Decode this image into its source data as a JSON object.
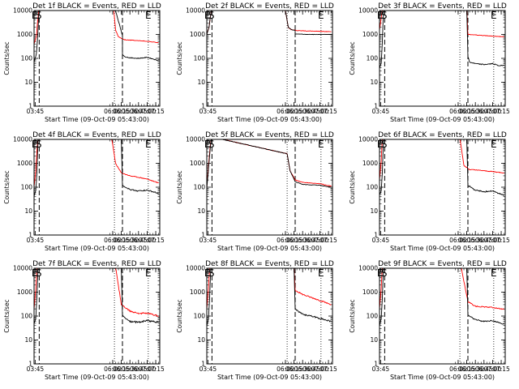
{
  "chart_data": [
    {
      "type": "line",
      "title": "Det 1f BLACK = Events, RED = LLD",
      "xlabel": "Start Time (09-Oct-09 05:43:00)",
      "ylabel": "Counts/sec",
      "yscale": "log",
      "xlim": [
        "03:43",
        "07:22"
      ],
      "ylim": [
        1,
        10000
      ],
      "xticks": [
        "03:45",
        "06:00",
        "06:15",
        "06:30",
        "06:45",
        "07:00",
        "07:15"
      ],
      "yticks": [
        "1",
        "10",
        "100",
        "1000",
        "10000"
      ],
      "markers": [
        {
          "label": "E",
          "x": "03:44"
        },
        {
          "label": "S",
          "x": "03:51"
        },
        {
          "label": "E",
          "x": "07:02"
        }
      ],
      "dashed_lines": [
        "03:52",
        "06:17"
      ],
      "dotted_lines": [
        "06:03",
        "07:02"
      ],
      "series": [
        {
          "color": "#ff0000",
          "x": [
            "03:43",
            "03:47",
            "03:49",
            "03:51",
            "03:53",
            "06:02",
            "06:05",
            "06:10",
            "06:20",
            "06:40",
            "07:00",
            "07:20"
          ],
          "values": [
            400,
            800,
            3000,
            10000,
            12000,
            10000,
            1500,
            800,
            600,
            560,
            520,
            450
          ],
          "noise": 0.02
        },
        {
          "color": "#000000",
          "x": [
            "03:43",
            "03:47",
            "03:49",
            "03:51",
            "03:53",
            "06:05",
            "06:17",
            "06:17",
            "06:20",
            "06:30",
            "06:45",
            "07:00",
            "07:10",
            "07:20"
          ],
          "values": [
            70,
            150,
            600,
            6000,
            12000,
            10000,
            900,
            150,
            120,
            105,
            100,
            110,
            95,
            80
          ],
          "noise": 0.03
        }
      ]
    },
    {
      "type": "line",
      "title": "Det 2f BLACK = Events, RED = LLD",
      "xlabel": "Start Time (09-Oct-09 05:43:00)",
      "ylabel": "Counts/sec",
      "yscale": "log",
      "xlim": [
        "03:43",
        "07:22"
      ],
      "ylim": [
        1,
        10000
      ],
      "xticks": [
        "03:45",
        "06:00",
        "06:15",
        "06:30",
        "06:45",
        "07:00",
        "07:15"
      ],
      "yticks": [
        "1",
        "10",
        "100",
        "1000",
        "10000"
      ],
      "markers": [
        {
          "label": "E",
          "x": "03:44"
        },
        {
          "label": "S",
          "x": "03:51"
        },
        {
          "label": "E",
          "x": "07:02"
        }
      ],
      "dashed_lines": [
        "03:52",
        "06:17"
      ],
      "dotted_lines": [
        "06:03",
        "07:02"
      ],
      "series": [
        {
          "color": "#ff0000",
          "x": [
            "03:43",
            "03:47",
            "03:49",
            "03:51",
            "03:53",
            "06:00",
            "06:05",
            "06:10",
            "06:20",
            "06:40",
            "07:00",
            "07:20"
          ],
          "values": [
            1000,
            2000,
            5000,
            10000,
            12000,
            10000,
            2000,
            1600,
            1450,
            1400,
            1350,
            1300
          ],
          "noise": 0.02
        },
        {
          "color": "#000000",
          "x": [
            "03:43",
            "03:47",
            "03:49",
            "03:51",
            "03:53",
            "06:00",
            "06:05",
            "06:10",
            "06:17",
            "06:17",
            "06:40",
            "07:00",
            "07:20"
          ],
          "values": [
            1000,
            2000,
            5000,
            10000,
            12000,
            10000,
            2000,
            1600,
            1450,
            1050,
            1000,
            1000,
            1000
          ],
          "noise": 0.015
        }
      ]
    },
    {
      "type": "line",
      "title": "Det 3f BLACK = Events, RED = LLD",
      "xlabel": "Start Time (09-Oct-09 05:43:00)",
      "ylabel": "Counts/sec",
      "yscale": "log",
      "xlim": [
        "03:43",
        "07:22"
      ],
      "ylim": [
        1,
        10000
      ],
      "xticks": [
        "03:45",
        "06:00",
        "06:15",
        "06:30",
        "06:45",
        "07:00",
        "07:15"
      ],
      "yticks": [
        "1",
        "10",
        "100",
        "1000",
        "10000"
      ],
      "markers": [
        {
          "label": "E",
          "x": "03:44"
        },
        {
          "label": "S",
          "x": "03:51"
        },
        {
          "label": "E",
          "x": "07:02"
        }
      ],
      "dashed_lines": [
        "03:52",
        "06:17"
      ],
      "dotted_lines": [
        "06:03",
        "07:02"
      ],
      "series": [
        {
          "color": "#ff0000",
          "x": [
            "03:43",
            "03:46",
            "03:48",
            "03:50",
            "06:15",
            "06:17",
            "06:30",
            "06:45",
            "07:00",
            "07:20"
          ],
          "values": [
            1500,
            5000,
            12000,
            12000,
            12000,
            1000,
            950,
            900,
            850,
            800
          ],
          "noise": 0.02
        },
        {
          "color": "#000000",
          "x": [
            "03:43",
            "03:46",
            "03:48",
            "03:50",
            "06:15",
            "06:17",
            "06:20",
            "06:30",
            "06:45",
            "07:00",
            "07:10",
            "07:20"
          ],
          "values": [
            40,
            60,
            500,
            12000,
            12000,
            120,
            70,
            60,
            55,
            60,
            50,
            50
          ],
          "noise": 0.04
        }
      ]
    },
    {
      "type": "line",
      "title": "Det 4f BLACK = Events, RED = LLD",
      "xlabel": "Start Time (09-Oct-09 05:43:00)",
      "ylabel": "Counts/sec",
      "yscale": "log",
      "xlim": [
        "03:43",
        "07:22"
      ],
      "ylim": [
        1,
        10000
      ],
      "xticks": [
        "03:45",
        "06:00",
        "06:15",
        "06:30",
        "06:45",
        "07:00",
        "07:15"
      ],
      "yticks": [
        "1",
        "10",
        "100",
        "1000",
        "10000"
      ],
      "markers": [
        {
          "label": "E",
          "x": "03:44"
        },
        {
          "label": "S",
          "x": "03:51"
        },
        {
          "label": "E",
          "x": "07:02"
        }
      ],
      "dashed_lines": [
        "03:52",
        "06:17"
      ],
      "dotted_lines": [
        "06:03",
        "07:02"
      ],
      "series": [
        {
          "color": "#ff0000",
          "x": [
            "03:43",
            "03:46",
            "03:48",
            "03:50",
            "05:58",
            "06:05",
            "06:15",
            "06:30",
            "06:45",
            "07:00",
            "07:20"
          ],
          "values": [
            100,
            500,
            3000,
            12000,
            12000,
            1000,
            400,
            300,
            260,
            220,
            150
          ],
          "noise": 0.03
        },
        {
          "color": "#000000",
          "x": [
            "03:43",
            "03:46",
            "03:48",
            "03:50",
            "06:15",
            "06:17",
            "06:30",
            "06:45",
            "07:00",
            "07:20"
          ],
          "values": [
            40,
            70,
            400,
            12000,
            12000,
            120,
            80,
            70,
            75,
            55
          ],
          "noise": 0.05
        }
      ]
    },
    {
      "type": "line",
      "title": "Det 5f BLACK = Events, RED = LLD",
      "xlabel": "Start Time (09-Oct-09 05:43:00)",
      "ylabel": "Counts/sec",
      "yscale": "log",
      "xlim": [
        "03:43",
        "07:22"
      ],
      "ylim": [
        1,
        10000
      ],
      "xticks": [
        "03:45",
        "06:00",
        "06:15",
        "06:30",
        "06:45",
        "07:00",
        "07:15"
      ],
      "yticks": [
        "1",
        "10",
        "100",
        "1000",
        "10000"
      ],
      "markers": [
        {
          "label": "E",
          "x": "03:44"
        },
        {
          "label": "S",
          "x": "03:51"
        },
        {
          "label": "E",
          "x": "07:02"
        }
      ],
      "dashed_lines": [
        "03:52",
        "06:17"
      ],
      "dotted_lines": [
        "06:03",
        "07:02"
      ],
      "series": [
        {
          "color": "#ff0000",
          "x": [
            "03:43",
            "03:46",
            "03:49",
            "03:51",
            "03:56",
            "06:03",
            "06:08",
            "06:17",
            "06:30",
            "06:45",
            "07:00",
            "07:20"
          ],
          "values": [
            100,
            800,
            5000,
            12000,
            12000,
            2500,
            500,
            200,
            160,
            150,
            140,
            110
          ],
          "noise": 0.02
        },
        {
          "color": "#000000",
          "x": [
            "03:43",
            "03:46",
            "03:49",
            "03:51",
            "03:56",
            "06:03",
            "06:08",
            "06:17",
            "06:30",
            "06:45",
            "07:00",
            "07:20"
          ],
          "values": [
            90,
            600,
            4000,
            12000,
            12000,
            2500,
            500,
            170,
            130,
            125,
            120,
            100
          ],
          "noise": 0.02
        }
      ]
    },
    {
      "type": "line",
      "title": "Det 6f BLACK = Events, RED = LLD",
      "xlabel": "Start Time (09-Oct-09 05:43:00)",
      "ylabel": "Counts/sec",
      "yscale": "log",
      "xlim": [
        "03:43",
        "07:22"
      ],
      "ylim": [
        1,
        10000
      ],
      "xticks": [
        "03:45",
        "06:00",
        "06:15",
        "06:30",
        "06:45",
        "07:00",
        "07:15"
      ],
      "yticks": [
        "1",
        "10",
        "100",
        "1000",
        "10000"
      ],
      "markers": [
        {
          "label": "E",
          "x": "03:44"
        },
        {
          "label": "S",
          "x": "03:51"
        },
        {
          "label": "E",
          "x": "07:02"
        }
      ],
      "dashed_lines": [
        "03:52",
        "06:17"
      ],
      "dotted_lines": [
        "06:03",
        "07:02"
      ],
      "series": [
        {
          "color": "#ff0000",
          "x": [
            "03:43",
            "03:46",
            "03:48",
            "03:50",
            "06:03",
            "06:10",
            "06:20",
            "06:40",
            "07:00",
            "07:20"
          ],
          "values": [
            200,
            1200,
            12000,
            12000,
            12000,
            800,
            550,
            500,
            450,
            400
          ],
          "noise": 0.03
        },
        {
          "color": "#000000",
          "x": [
            "03:43",
            "03:46",
            "03:48",
            "03:50",
            "06:15",
            "06:17",
            "06:30",
            "06:45",
            "07:00",
            "07:20"
          ],
          "values": [
            50,
            70,
            400,
            12000,
            12000,
            120,
            75,
            65,
            70,
            45
          ],
          "noise": 0.05
        }
      ]
    },
    {
      "type": "line",
      "title": "Det 7f BLACK = Events, RED = LLD",
      "xlabel": "Start Time (09-Oct-09 05:43:00)",
      "ylabel": "Counts/sec",
      "yscale": "log",
      "xlim": [
        "03:43",
        "07:22"
      ],
      "ylim": [
        1,
        10000
      ],
      "xticks": [
        "03:45",
        "06:00",
        "06:15",
        "06:30",
        "06:45",
        "07:00",
        "07:15"
      ],
      "yticks": [
        "1",
        "10",
        "100",
        "1000",
        "10000"
      ],
      "markers": [
        {
          "label": "E",
          "x": "03:44"
        },
        {
          "label": "S",
          "x": "03:51"
        },
        {
          "label": "E",
          "x": "07:02"
        }
      ],
      "dashed_lines": [
        "03:52",
        "06:17"
      ],
      "dotted_lines": [
        "06:03",
        "07:02"
      ],
      "series": [
        {
          "color": "#ff0000",
          "x": [
            "03:43",
            "03:46",
            "03:48",
            "03:50",
            "06:05",
            "06:15",
            "06:30",
            "06:45",
            "07:00",
            "07:20"
          ],
          "values": [
            200,
            1200,
            12000,
            12000,
            12000,
            300,
            160,
            130,
            130,
            100
          ],
          "noise": 0.06
        },
        {
          "color": "#000000",
          "x": [
            "03:43",
            "03:46",
            "03:48",
            "03:50",
            "06:15",
            "06:17",
            "06:30",
            "06:45",
            "07:00",
            "07:20"
          ],
          "values": [
            50,
            80,
            600,
            12000,
            12000,
            100,
            60,
            55,
            65,
            55
          ],
          "noise": 0.07
        }
      ]
    },
    {
      "type": "line",
      "title": "Det 8f BLACK = Events, RED = LLD",
      "xlabel": "Start Time (09-Oct-09 05:43:00)",
      "ylabel": "Counts/sec",
      "yscale": "log",
      "xlim": [
        "03:43",
        "07:22"
      ],
      "ylim": [
        1,
        10000
      ],
      "xticks": [
        "03:45",
        "06:00",
        "06:15",
        "06:30",
        "06:45",
        "07:00",
        "07:15"
      ],
      "yticks": [
        "1",
        "10",
        "100",
        "1000",
        "10000"
      ],
      "markers": [
        {
          "label": "E",
          "x": "03:44"
        },
        {
          "label": "S",
          "x": "03:51"
        },
        {
          "label": "E",
          "x": "07:02"
        }
      ],
      "dashed_lines": [
        "03:52",
        "06:17"
      ],
      "dotted_lines": [
        "06:03",
        "07:02"
      ],
      "series": [
        {
          "color": "#ff0000",
          "x": [
            "03:43",
            "03:46",
            "03:48",
            "03:50",
            "06:15",
            "06:17",
            "06:30",
            "06:45",
            "07:00",
            "07:20"
          ],
          "values": [
            200,
            1500,
            12000,
            12000,
            12000,
            1200,
            800,
            600,
            450,
            300
          ],
          "noise": 0.05
        },
        {
          "color": "#000000",
          "x": [
            "03:43",
            "03:46",
            "03:48",
            "03:50",
            "06:15",
            "06:17",
            "06:30",
            "06:45",
            "07:00",
            "07:20"
          ],
          "values": [
            40,
            80,
            600,
            12000,
            12000,
            200,
            120,
            100,
            80,
            60
          ],
          "noise": 0.06
        }
      ]
    },
    {
      "type": "line",
      "title": "Det 9f BLACK = Events, RED = LLD",
      "xlabel": "Start Time (09-Oct-09 05:43:00)",
      "ylabel": "Counts/sec",
      "yscale": "log",
      "xlim": [
        "03:43",
        "07:22"
      ],
      "ylim": [
        1,
        10000
      ],
      "xticks": [
        "03:45",
        "06:00",
        "06:15",
        "06:30",
        "06:45",
        "07:00",
        "07:15"
      ],
      "yticks": [
        "1",
        "10",
        "100",
        "1000",
        "10000"
      ],
      "markers": [
        {
          "label": "E",
          "x": "03:44"
        },
        {
          "label": "S",
          "x": "03:51"
        },
        {
          "label": "E",
          "x": "07:02"
        }
      ],
      "dashed_lines": [
        "03:52",
        "06:17"
      ],
      "dotted_lines": [
        "06:03",
        "07:02"
      ],
      "series": [
        {
          "color": "#ff0000",
          "x": [
            "03:43",
            "03:46",
            "03:48",
            "03:50",
            "06:05",
            "06:17",
            "06:30",
            "06:45",
            "07:00",
            "07:20"
          ],
          "values": [
            200,
            1500,
            12000,
            12000,
            12000,
            400,
            260,
            240,
            230,
            190
          ],
          "noise": 0.04
        },
        {
          "color": "#000000",
          "x": [
            "03:43",
            "03:46",
            "03:48",
            "03:50",
            "06:15",
            "06:17",
            "06:30",
            "06:45",
            "07:00",
            "07:20"
          ],
          "values": [
            40,
            80,
            600,
            12000,
            12000,
            110,
            70,
            60,
            65,
            45
          ],
          "noise": 0.05
        }
      ]
    }
  ]
}
